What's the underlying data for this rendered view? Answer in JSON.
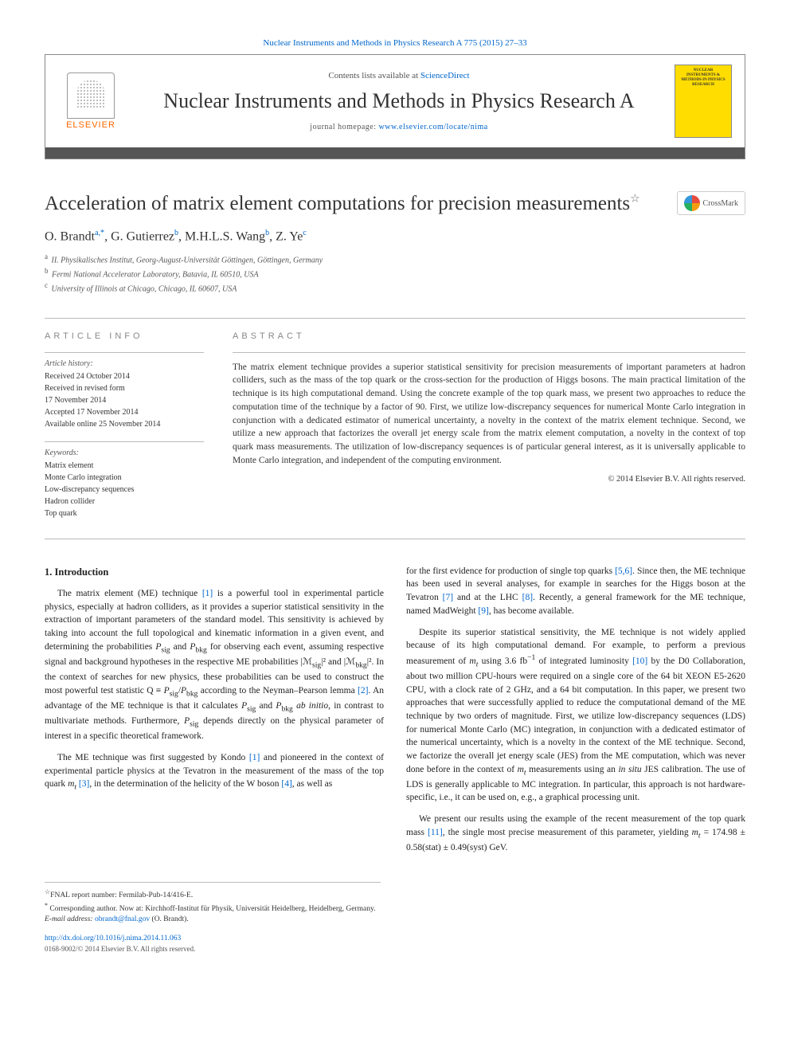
{
  "top_citation": "Nuclear Instruments and Methods in Physics Research A 775 (2015) 27–33",
  "header": {
    "contents_prefix": "Contents lists available at ",
    "contents_link": "ScienceDirect",
    "journal_name": "Nuclear Instruments and Methods in Physics Research A",
    "homepage_prefix": "journal homepage: ",
    "homepage_url": "www.elsevier.com/locate/nima",
    "publisher": "ELSEVIER",
    "cover_title": "NUCLEAR INSTRUMENTS & METHODS IN PHYSICS RESEARCH"
  },
  "title": "Acceleration of matrix element computations for precision measurements",
  "crossmark": "CrossMark",
  "authors_html": "O. Brandt<sup>a,*</sup>, G. Gutierrez<sup>b</sup>, M.H.L.S. Wang<sup>b</sup>, Z. Ye<sup>c</sup>",
  "affiliations": [
    "II. Physikalisches Institut, Georg-August-Universität Göttingen, Göttingen, Germany",
    "Fermi National Accelerator Laboratory, Batavia, IL 60510, USA",
    "University of Illinois at Chicago, Chicago, IL 60607, USA"
  ],
  "affil_labels": [
    "a",
    "b",
    "c"
  ],
  "article_info": {
    "heading": "ARTICLE INFO",
    "history_label": "Article history:",
    "history": "Received 24 October 2014\nReceived in revised form\n17 November 2014\nAccepted 17 November 2014\nAvailable online 25 November 2014",
    "keywords_label": "Keywords:",
    "keywords": "Matrix element\nMonte Carlo integration\nLow-discrepancy sequences\nHadron collider\nTop quark"
  },
  "abstract": {
    "heading": "ABSTRACT",
    "text": "The matrix element technique provides a superior statistical sensitivity for precision measurements of important parameters at hadron colliders, such as the mass of the top quark or the cross-section for the production of Higgs bosons. The main practical limitation of the technique is its high computational demand. Using the concrete example of the top quark mass, we present two approaches to reduce the computation time of the technique by a factor of 90. First, we utilize low-discrepancy sequences for numerical Monte Carlo integration in conjunction with a dedicated estimator of numerical uncertainty, a novelty in the context of the matrix element technique. Second, we utilize a new approach that factorizes the overall jet energy scale from the matrix element computation, a novelty in the context of top quark mass measurements. The utilization of low-discrepancy sequences is of particular general interest, as it is universally applicable to Monte Carlo integration, and independent of the computing environment.",
    "copyright": "© 2014 Elsevier B.V. All rights reserved."
  },
  "body": {
    "section1_heading": "1. Introduction",
    "col1_p1": "The matrix element (ME) technique [1] is a powerful tool in experimental particle physics, especially at hadron colliders, as it provides a superior statistical sensitivity in the extraction of important parameters of the standard model. This sensitivity is achieved by taking into account the full topological and kinematic information in a given event, and determining the probabilities P_sig and P_bkg for observing each event, assuming respective signal and background hypotheses in the respective ME probabilities |ℳ_sig|² and |ℳ_bkg|². In the context of searches for new physics, these probabilities can be used to construct the most powerful test statistic Q ≡ P_sig/P_bkg according to the Neyman–Pearson lemma [2]. An advantage of the ME technique is that it calculates P_sig and P_bkg ab initio, in contrast to multivariate methods. Furthermore, P_sig depends directly on the physical parameter of interest in a specific theoretical framework.",
    "col1_p2": "The ME technique was first suggested by Kondo [1] and pioneered in the context of experimental particle physics at the Tevatron in the measurement of the mass of the top quark m_t [3], in the determination of the helicity of the W boson [4], as well as",
    "col2_p1": "for the first evidence for production of single top quarks [5,6]. Since then, the ME technique has been used in several analyses, for example in searches for the Higgs boson at the Tevatron [7] and at the LHC [8]. Recently, a general framework for the ME technique, named MadWeight [9], has become available.",
    "col2_p2": "Despite its superior statistical sensitivity, the ME technique is not widely applied because of its high computational demand. For example, to perform a previous measurement of m_t using 3.6 fb⁻¹ of integrated luminosity [10] by the D0 Collaboration, about two million CPU-hours were required on a single core of the 64 bit XEON E5-2620 CPU, with a clock rate of 2 GHz, and a 64 bit computation. In this paper, we present two approaches that were successfully applied to reduce the computational demand of the ME technique by two orders of magnitude. First, we utilize low-discrepancy sequences (LDS) for numerical Monte Carlo (MC) integration, in conjunction with a dedicated estimator of the numerical uncertainty, which is a novelty in the context of the ME technique. Second, we factorize the overall jet energy scale (JES) from the ME computation, which was never done before in the context of m_t measurements using an in situ JES calibration. The use of LDS is generally applicable to MC integration. In particular, this approach is not hardware-specific, i.e., it can be used on, e.g., a graphical processing unit.",
    "col2_p3": "We present our results using the example of the recent measurement of the top quark mass [11], the single most precise measurement of this parameter, yielding m_t = 174.98 ± 0.58(stat) ± 0.49(syst) GeV."
  },
  "footnotes": {
    "star": "FNAL report number: Fermilab-Pub-14/416-E.",
    "corr": "Corresponding author. Now at: Kirchhoff-Institut für Physik, Universität Heidelberg, Heidelberg, Germany.",
    "email_label": "E-mail address: ",
    "email": "obrandt@fnal.gov",
    "email_suffix": " (O. Brandt).",
    "doi": "http://dx.doi.org/10.1016/j.nima.2014.11.063",
    "issn_copy": "0168-9002/© 2014 Elsevier B.V. All rights reserved."
  },
  "colors": {
    "link": "#0066cc",
    "elsevier_orange": "#ff6600",
    "cover_yellow": "#ffdd00",
    "bar": "#555555",
    "text": "#333333",
    "muted": "#888888"
  }
}
